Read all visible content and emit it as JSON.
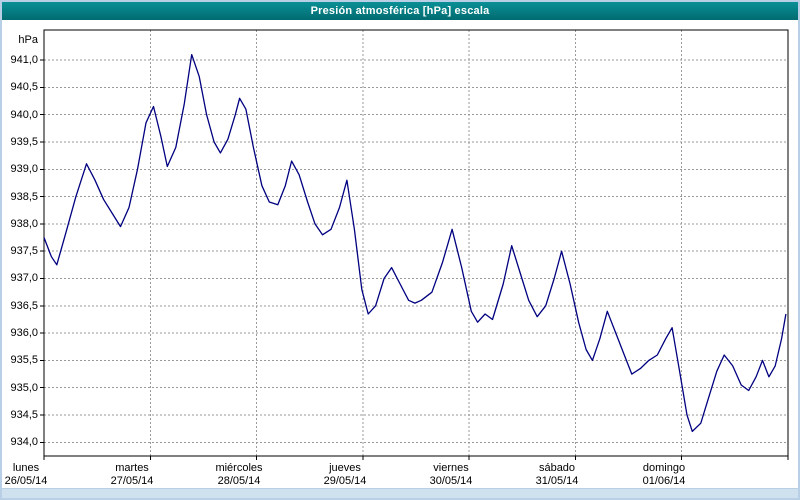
{
  "window": {
    "title": "Presión atmosférica [hPa] escala"
  },
  "colors": {
    "title_bar": "#017478",
    "line": "#000080",
    "grid": "#9a9a9a",
    "plot_border": "#000000",
    "frame": "#b9cfe6"
  },
  "chart_data": {
    "type": "line",
    "title": "Presión atmosférica [hPa] escala",
    "y_unit": "hPa",
    "ylabel": "hPa",
    "xlabel": "",
    "grid": "dashed",
    "legend": "none",
    "ylim": [
      933.75,
      941.55
    ],
    "x_range_days": 7,
    "y_ticks": [
      {
        "value": 941.0,
        "label": "941,0"
      },
      {
        "value": 940.5,
        "label": "940,5"
      },
      {
        "value": 940.0,
        "label": "940,0"
      },
      {
        "value": 939.5,
        "label": "939,5"
      },
      {
        "value": 939.0,
        "label": "939,0"
      },
      {
        "value": 938.5,
        "label": "938,5"
      },
      {
        "value": 938.0,
        "label": "938,0"
      },
      {
        "value": 937.5,
        "label": "937,5"
      },
      {
        "value": 937.0,
        "label": "937,0"
      },
      {
        "value": 936.5,
        "label": "936,5"
      },
      {
        "value": 936.0,
        "label": "936,0"
      },
      {
        "value": 935.5,
        "label": "935,5"
      },
      {
        "value": 935.0,
        "label": "935,0"
      },
      {
        "value": 934.5,
        "label": "934,5"
      },
      {
        "value": 934.0,
        "label": "934,0"
      }
    ],
    "x_days": [
      {
        "name": "lunes",
        "date": "26/05/14"
      },
      {
        "name": "martes",
        "date": "27/05/14"
      },
      {
        "name": "miércoles",
        "date": "28/05/14"
      },
      {
        "name": "jueves",
        "date": "29/05/14"
      },
      {
        "name": "viernes",
        "date": "30/05/14"
      },
      {
        "name": "sábado",
        "date": "31/05/14"
      },
      {
        "name": "domingo",
        "date": "01/06/14"
      }
    ],
    "series": [
      {
        "name": "Presión atmosférica",
        "color": "#000080",
        "points": [
          [
            0,
            937.75
          ],
          [
            0.07,
            937.4
          ],
          [
            0.12,
            937.25
          ],
          [
            0.2,
            937.8
          ],
          [
            0.3,
            938.5
          ],
          [
            0.4,
            939.1
          ],
          [
            0.48,
            938.8
          ],
          [
            0.56,
            938.45
          ],
          [
            0.64,
            938.2
          ],
          [
            0.72,
            937.95
          ],
          [
            0.8,
            938.3
          ],
          [
            0.88,
            939.0
          ],
          [
            0.96,
            939.85
          ],
          [
            1.03,
            940.15
          ],
          [
            1.1,
            939.6
          ],
          [
            1.16,
            939.05
          ],
          [
            1.24,
            939.4
          ],
          [
            1.32,
            940.2
          ],
          [
            1.39,
            941.1
          ],
          [
            1.46,
            940.7
          ],
          [
            1.53,
            940.0
          ],
          [
            1.6,
            939.5
          ],
          [
            1.66,
            939.3
          ],
          [
            1.73,
            939.55
          ],
          [
            1.8,
            940.0
          ],
          [
            1.84,
            940.3
          ],
          [
            1.9,
            940.1
          ],
          [
            1.97,
            939.4
          ],
          [
            2.05,
            938.7
          ],
          [
            2.12,
            938.4
          ],
          [
            2.2,
            938.35
          ],
          [
            2.27,
            938.7
          ],
          [
            2.33,
            939.15
          ],
          [
            2.4,
            938.9
          ],
          [
            2.48,
            938.4
          ],
          [
            2.55,
            938.0
          ],
          [
            2.62,
            937.8
          ],
          [
            2.7,
            937.9
          ],
          [
            2.78,
            938.3
          ],
          [
            2.85,
            938.8
          ],
          [
            2.92,
            937.9
          ],
          [
            2.99,
            936.8
          ],
          [
            3.05,
            936.35
          ],
          [
            3.12,
            936.5
          ],
          [
            3.2,
            937.0
          ],
          [
            3.27,
            937.2
          ],
          [
            3.35,
            936.9
          ],
          [
            3.43,
            936.6
          ],
          [
            3.49,
            936.55
          ],
          [
            3.55,
            936.6
          ],
          [
            3.65,
            936.75
          ],
          [
            3.75,
            937.3
          ],
          [
            3.84,
            937.9
          ],
          [
            3.93,
            937.2
          ],
          [
            4.02,
            936.4
          ],
          [
            4.08,
            936.2
          ],
          [
            4.15,
            936.35
          ],
          [
            4.22,
            936.25
          ],
          [
            4.32,
            936.9
          ],
          [
            4.4,
            937.6
          ],
          [
            4.48,
            937.1
          ],
          [
            4.56,
            936.6
          ],
          [
            4.64,
            936.3
          ],
          [
            4.72,
            936.5
          ],
          [
            4.8,
            937.0
          ],
          [
            4.87,
            937.5
          ],
          [
            4.95,
            936.9
          ],
          [
            5.03,
            936.2
          ],
          [
            5.1,
            935.7
          ],
          [
            5.16,
            935.5
          ],
          [
            5.23,
            935.9
          ],
          [
            5.3,
            936.4
          ],
          [
            5.38,
            936.0
          ],
          [
            5.46,
            935.6
          ],
          [
            5.53,
            935.25
          ],
          [
            5.61,
            935.35
          ],
          [
            5.69,
            935.5
          ],
          [
            5.77,
            935.6
          ],
          [
            5.85,
            935.9
          ],
          [
            5.91,
            936.1
          ],
          [
            5.98,
            935.3
          ],
          [
            6.05,
            934.5
          ],
          [
            6.1,
            934.2
          ],
          [
            6.18,
            934.35
          ],
          [
            6.25,
            934.8
          ],
          [
            6.33,
            935.3
          ],
          [
            6.4,
            935.6
          ],
          [
            6.48,
            935.4
          ],
          [
            6.56,
            935.05
          ],
          [
            6.63,
            934.95
          ],
          [
            6.7,
            935.2
          ],
          [
            6.76,
            935.5
          ],
          [
            6.82,
            935.2
          ],
          [
            6.88,
            935.4
          ],
          [
            6.94,
            935.9
          ],
          [
            6.98,
            936.35
          ]
        ]
      }
    ]
  }
}
